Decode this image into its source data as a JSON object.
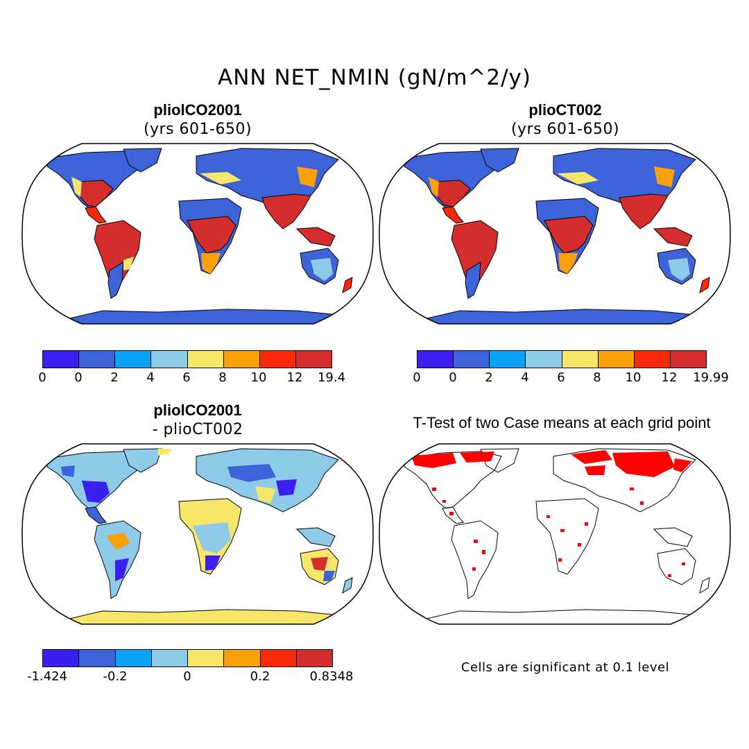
{
  "title": "ANN NET_NMIN (gN/m^2/y)",
  "panels": {
    "top_left": {
      "case": "pliolCO2001",
      "subtitle": "(yrs 601-650)"
    },
    "top_right": {
      "case": "plioCT002",
      "subtitle": "(yrs 601-650)"
    },
    "bottom_left": {
      "case": "pliolCO2001",
      "subtitle": "- plioCT002"
    },
    "bottom_right": {
      "title": "T-Test of two Case means at each grid point",
      "note": "Cells are significant at 0.1 level"
    }
  },
  "colorbars": {
    "colors": [
      "#3b1ff0",
      "#3d63d9",
      "#0aa2f5",
      "#8ecbe9",
      "#f8e66a",
      "#f9a107",
      "#f82a0a",
      "#d42d2d"
    ],
    "top_left_ticks": [
      "0",
      "0",
      "2",
      "4",
      "6",
      "8",
      "10",
      "12",
      "19.4"
    ],
    "top_right_ticks": [
      "0",
      "0",
      "2",
      "4",
      "6",
      "8",
      "10",
      "12",
      "19.99"
    ],
    "bottom_left_ticks": [
      "-1.424",
      "-0.2",
      "0",
      "0.2",
      "0.8348"
    ]
  },
  "significance_color": "#ff0000"
}
